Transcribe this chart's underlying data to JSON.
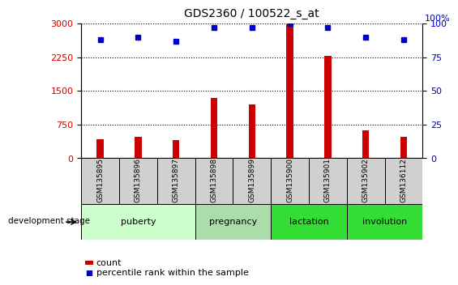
{
  "title": "GDS2360 / 100522_s_at",
  "samples": [
    "GSM135895",
    "GSM135896",
    "GSM135897",
    "GSM135898",
    "GSM135899",
    "GSM135900",
    "GSM135901",
    "GSM135902",
    "GSM136112"
  ],
  "counts": [
    430,
    480,
    400,
    1350,
    1200,
    2980,
    2280,
    620,
    470
  ],
  "percentile_ranks": [
    88,
    90,
    87,
    97,
    97,
    100,
    97,
    90,
    88
  ],
  "ylim_left": [
    0,
    3000
  ],
  "ylim_right": [
    0,
    100
  ],
  "yticks_left": [
    0,
    750,
    1500,
    2250,
    3000
  ],
  "yticks_right": [
    0,
    25,
    50,
    75,
    100
  ],
  "bar_color": "#cc0000",
  "dot_color": "#0000cc",
  "bar_width": 0.18,
  "stages_info": [
    {
      "label": "puberty",
      "start": 0,
      "end": 2,
      "color": "#ccffcc"
    },
    {
      "label": "pregnancy",
      "start": 3,
      "end": 4,
      "color": "#aaddaa"
    },
    {
      "label": "lactation",
      "start": 5,
      "end": 6,
      "color": "#33dd33"
    },
    {
      "label": "involution",
      "start": 7,
      "end": 8,
      "color": "#33dd33"
    }
  ],
  "sample_box_color": "#d0d0d0",
  "tick_label_color_left": "#cc0000",
  "tick_label_color_right": "#0000cc",
  "legend_count_color": "#cc0000",
  "legend_pct_color": "#0000cc",
  "background_color": "#ffffff"
}
